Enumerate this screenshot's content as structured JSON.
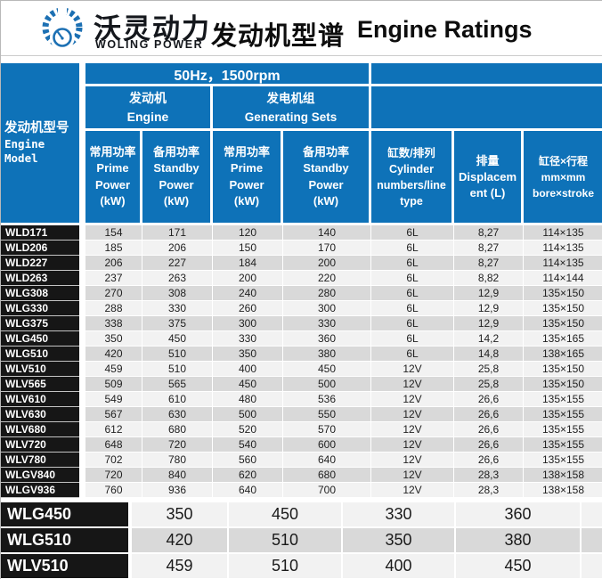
{
  "colors": {
    "header_blue": "#0e72b8",
    "model_black": "#161616",
    "stripe_dark": "#d9d9d9",
    "stripe_light": "#f2f2f2",
    "logo_blue": "#1c70b3"
  },
  "brand": {
    "logo_icon": "gear-gauge-icon",
    "name_cn": "沃灵动力",
    "name_en": "WOLING POWER",
    "title_cn": "发动机型谱",
    "title_en": "Engine Ratings"
  },
  "table": {
    "freq_header": "50Hz，1500rpm",
    "model_header_cn": "发动机型号",
    "model_header_en": "Engine\nModel",
    "group_engine": "发动机\nEngine",
    "group_gensets": "发电机组\nGenerating Sets",
    "power_headers": [
      "常用功率\nPrime\nPower\n(kW)",
      "备用功率\nStandby\nPower\n(kW)",
      "常用功率\nPrime\nPower\n(kW)",
      "备用功率\nStandby\nPower\n(kW)"
    ],
    "cylinder_header": "缸数/排列\nCylinder\nnumbers/line\ntype",
    "displacement_header": "排量\nDisplacem\nent (L)",
    "bore_header": "缸径×行程\nmm×mm\nbore×stroke",
    "rows": [
      {
        "model": "WLD171",
        "values": [
          "154",
          "171",
          "120",
          "140",
          "6L",
          "8,27",
          "114×135"
        ]
      },
      {
        "model": "WLD206",
        "values": [
          "185",
          "206",
          "150",
          "170",
          "6L",
          "8,27",
          "114×135"
        ]
      },
      {
        "model": "WLD227",
        "values": [
          "206",
          "227",
          "184",
          "200",
          "6L",
          "8,27",
          "114×135"
        ]
      },
      {
        "model": "WLD263",
        "values": [
          "237",
          "263",
          "200",
          "220",
          "6L",
          "8,82",
          "114×144"
        ]
      },
      {
        "model": "WLG308",
        "values": [
          "270",
          "308",
          "240",
          "280",
          "6L",
          "12,9",
          "135×150"
        ]
      },
      {
        "model": "WLG330",
        "values": [
          "288",
          "330",
          "260",
          "300",
          "6L",
          "12,9",
          "135×150"
        ]
      },
      {
        "model": "WLG375",
        "values": [
          "338",
          "375",
          "300",
          "330",
          "6L",
          "12,9",
          "135×150"
        ]
      },
      {
        "model": "WLG450",
        "values": [
          "350",
          "450",
          "330",
          "360",
          "6L",
          "14,2",
          "135×165"
        ]
      },
      {
        "model": "WLG510",
        "values": [
          "420",
          "510",
          "350",
          "380",
          "6L",
          "14,8",
          "138×165"
        ]
      },
      {
        "model": "WLV510",
        "values": [
          "459",
          "510",
          "400",
          "450",
          "12V",
          "25,8",
          "135×150"
        ]
      },
      {
        "model": "WLV565",
        "values": [
          "509",
          "565",
          "450",
          "500",
          "12V",
          "25,8",
          "135×150"
        ]
      },
      {
        "model": "WLV610",
        "values": [
          "549",
          "610",
          "480",
          "536",
          "12V",
          "26,6",
          "135×155"
        ]
      },
      {
        "model": "WLV630",
        "values": [
          "567",
          "630",
          "500",
          "550",
          "12V",
          "26,6",
          "135×155"
        ]
      },
      {
        "model": "WLV680",
        "values": [
          "612",
          "680",
          "520",
          "570",
          "12V",
          "26,6",
          "135×155"
        ]
      },
      {
        "model": "WLV720",
        "values": [
          "648",
          "720",
          "540",
          "600",
          "12V",
          "26,6",
          "135×155"
        ]
      },
      {
        "model": "WLV780",
        "values": [
          "702",
          "780",
          "560",
          "640",
          "12V",
          "26,6",
          "135×155"
        ]
      },
      {
        "model": "WLGV840",
        "values": [
          "720",
          "840",
          "620",
          "680",
          "12V",
          "28,3",
          "138×158"
        ]
      },
      {
        "model": "WLGV936",
        "values": [
          "760",
          "936",
          "640",
          "700",
          "12V",
          "28,3",
          "138×158"
        ]
      }
    ]
  },
  "summary": {
    "rows": [
      {
        "model": "WLG450",
        "values": [
          "350",
          "450",
          "330",
          "360"
        ]
      },
      {
        "model": "WLG510",
        "values": [
          "420",
          "510",
          "350",
          "380"
        ]
      },
      {
        "model": "WLV510",
        "values": [
          "459",
          "510",
          "400",
          "450"
        ]
      }
    ]
  }
}
